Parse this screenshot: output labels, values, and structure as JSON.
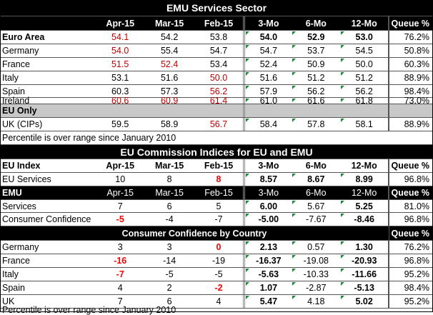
{
  "title": "EMU Services Sector",
  "header": [
    "",
    "Apr-15",
    "Mar-15",
    "Feb-15",
    "3-Mo",
    "6-Mo",
    "12-Mo",
    "Queue %"
  ],
  "services": [
    {
      "label": "Euro Area",
      "vals": [
        "54.1",
        "54.2",
        "53.8",
        "54.0",
        "52.9",
        "53.0",
        "76.2%"
      ]
    },
    {
      "label": "Germany",
      "vals": [
        "54.0",
        "55.4",
        "54.7",
        "54.7",
        "53.7",
        "54.5",
        "50.8%"
      ]
    },
    {
      "label": "France",
      "vals": [
        "51.5",
        "52.4",
        "53.4",
        "52.4",
        "50.9",
        "50.0",
        "60.3%"
      ]
    },
    {
      "label": "Italy",
      "vals": [
        "53.1",
        "51.6",
        "50.0",
        "51.6",
        "51.2",
        "51.2",
        "88.9%"
      ]
    },
    {
      "label": "Spain",
      "vals": [
        "60.3",
        "57.3",
        "56.2",
        "57.9",
        "56.2",
        "56.2",
        "98.4%"
      ]
    },
    {
      "label": "Ireland",
      "vals": [
        "60.6",
        "60.9",
        "61.4",
        "61.0",
        "61.6",
        "61.8",
        "73.0%"
      ]
    }
  ],
  "eu_only_label": "EU Only",
  "uk_row": {
    "label": "UK (CIPs)",
    "vals": [
      "59.5",
      "58.9",
      "56.7",
      "58.4",
      "57.8",
      "58.1",
      "88.9%"
    ]
  },
  "percentile_note_1": "Percentile is over range since January 2010",
  "commission_title": "EU Commission Indices for EU and EMU",
  "eu_index_header": [
    "EU Index",
    "Apr-15",
    "Mar-15",
    "Feb-15",
    "3-Mo",
    "6-Mo",
    "12-Mo",
    "Queue %"
  ],
  "eu_services": {
    "label": "EU Services",
    "vals": [
      "10",
      "8",
      "8",
      "8.57",
      "8.67",
      "8.99",
      "96.8%"
    ]
  },
  "emu_header": [
    "EMU",
    "Apr-15",
    "Mar-15",
    "Feb-15",
    "3-Mo",
    "6-Mo",
    "12-Mo",
    "Queue %"
  ],
  "emu_rows": [
    {
      "label": "Services",
      "vals": [
        "7",
        "6",
        "5",
        "6.00",
        "5.67",
        "5.25",
        "81.0%"
      ]
    },
    {
      "label": "Consumer Confidence",
      "vals": [
        "-5",
        "-4",
        "-7",
        "-5.00",
        "-7.67",
        "-8.46",
        "96.8%"
      ]
    }
  ],
  "cc_title": "Consumer Confidence by Country",
  "cc_queue_header": "Queue %",
  "cc_rows": [
    {
      "label": "Germany",
      "vals": [
        "3",
        "3",
        "0",
        "2.13",
        "0.57",
        "1.30",
        "76.2%"
      ]
    },
    {
      "label": "France",
      "vals": [
        "-16",
        "-14",
        "-19",
        "-16.37",
        "-19.08",
        "-20.93",
        "96.8%"
      ]
    },
    {
      "label": "Italy",
      "vals": [
        "-7",
        "-5",
        "-5",
        "-5.63",
        "-10.33",
        "-11.66",
        "95.2%"
      ]
    },
    {
      "label": "Spain",
      "vals": [
        "4",
        "2",
        "-2",
        "1.07",
        "-2.87",
        "-5.13",
        "98.4%"
      ]
    },
    {
      "label": "UK",
      "vals": [
        "7",
        "6",
        "4",
        "5.47",
        "4.18",
        "5.02",
        "95.2%"
      ]
    }
  ],
  "percentile_note_2": "Percentile is over range since January 2010",
  "colors": {
    "header_bg": "#000000",
    "header_fg": "#ffffff",
    "section_grey": "#c8c8c8",
    "red": "#c00000",
    "bright_red": "#ff0000",
    "mark_green": "#1e8a3a"
  }
}
